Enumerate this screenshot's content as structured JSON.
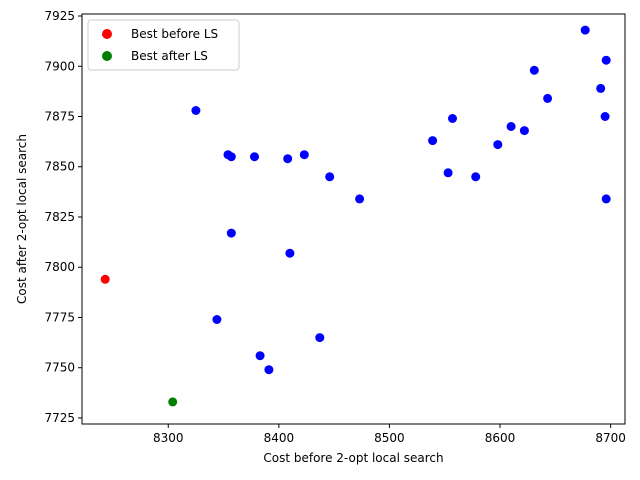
{
  "chart_data": {
    "type": "scatter",
    "xlabel": "Cost before 2-opt local search",
    "ylabel": "Cost after 2-opt local search",
    "xlim": [
      8222,
      8713
    ],
    "ylim": [
      7722,
      7926
    ],
    "xticks": [
      8300,
      8400,
      8500,
      8600,
      8700
    ],
    "yticks": [
      7725,
      7750,
      7775,
      7800,
      7825,
      7850,
      7875,
      7900,
      7925
    ],
    "grid": false,
    "legend_position": "top-left",
    "legend": [
      {
        "label": "Best before LS",
        "color": "#ff0000"
      },
      {
        "label": "Best after LS",
        "color": "#008000"
      }
    ],
    "series": [
      {
        "color": "#0000ff",
        "points": [
          {
            "x": 8325,
            "y": 7878
          },
          {
            "x": 8354,
            "y": 7856
          },
          {
            "x": 8357,
            "y": 7855
          },
          {
            "x": 8378,
            "y": 7855
          },
          {
            "x": 8408,
            "y": 7854
          },
          {
            "x": 8423,
            "y": 7856
          },
          {
            "x": 8446,
            "y": 7845
          },
          {
            "x": 8473,
            "y": 7834
          },
          {
            "x": 8357,
            "y": 7817
          },
          {
            "x": 8410,
            "y": 7807
          },
          {
            "x": 8344,
            "y": 7774
          },
          {
            "x": 8383,
            "y": 7756
          },
          {
            "x": 8391,
            "y": 7749
          },
          {
            "x": 8437,
            "y": 7765
          },
          {
            "x": 8539,
            "y": 7863
          },
          {
            "x": 8557,
            "y": 7874
          },
          {
            "x": 8553,
            "y": 7847
          },
          {
            "x": 8578,
            "y": 7845
          },
          {
            "x": 8598,
            "y": 7861
          },
          {
            "x": 8610,
            "y": 7870
          },
          {
            "x": 8622,
            "y": 7868
          },
          {
            "x": 8631,
            "y": 7898
          },
          {
            "x": 8643,
            "y": 7884
          },
          {
            "x": 8677,
            "y": 7918
          },
          {
            "x": 8691,
            "y": 7889
          },
          {
            "x": 8696,
            "y": 7903
          },
          {
            "x": 8695,
            "y": 7875
          },
          {
            "x": 8696,
            "y": 7834
          }
        ]
      },
      {
        "name": "Best before LS",
        "color": "#ff0000",
        "points": [
          {
            "x": 8243,
            "y": 7794
          }
        ]
      },
      {
        "name": "Best after LS",
        "color": "#008000",
        "points": [
          {
            "x": 8304,
            "y": 7733
          }
        ]
      }
    ]
  }
}
